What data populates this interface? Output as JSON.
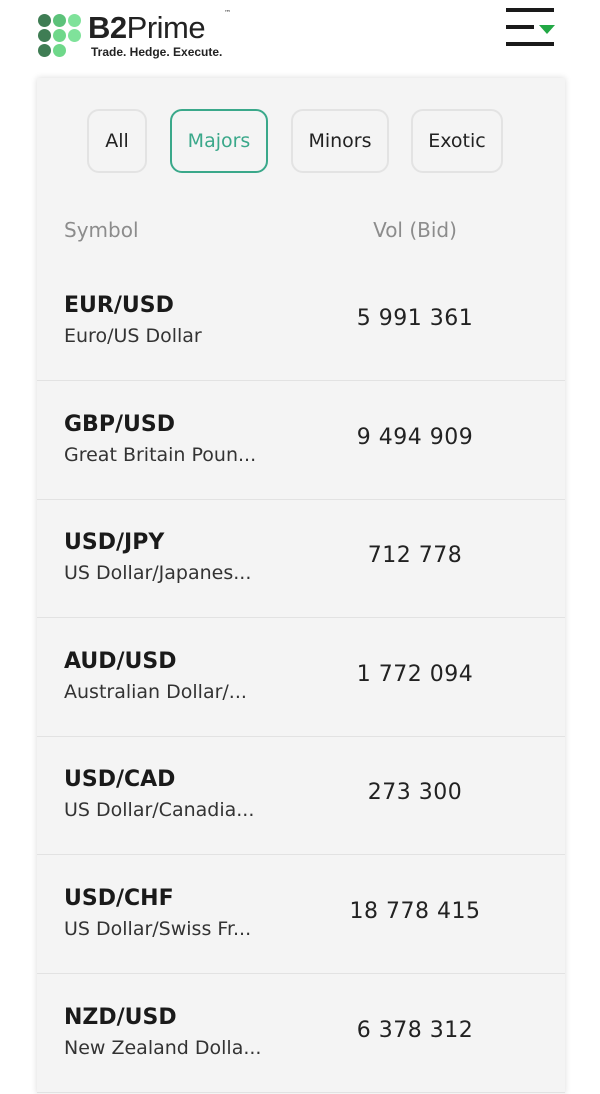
{
  "header": {
    "brand_bold": "B2",
    "brand_rest": "Prime",
    "trademark": "™",
    "tagline": "Trade. Hedge. Execute.",
    "colors": {
      "dark_green": "#3f7d54",
      "mid_green": "#5cc27a",
      "light_green": "#7fe29a",
      "menu_accent": "#22a845"
    }
  },
  "tabs": [
    {
      "label": "All",
      "active": false
    },
    {
      "label": "Majors",
      "active": true
    },
    {
      "label": "Minors",
      "active": false
    },
    {
      "label": "Exotic",
      "active": false
    }
  ],
  "columns": {
    "symbol": "Symbol",
    "vol": "Vol (Bid)"
  },
  "rows": [
    {
      "symbol": "EUR/USD",
      "name": "Euro/US Dollar",
      "vol": "5 991 361"
    },
    {
      "symbol": "GBP/USD",
      "name": "Great Britain Poun...",
      "vol": "9 494 909"
    },
    {
      "symbol": "USD/JPY",
      "name": "US Dollar/Japanes...",
      "vol": "712 778"
    },
    {
      "symbol": "AUD/USD",
      "name": "Australian Dollar/...",
      "vol": "1 772 094"
    },
    {
      "symbol": "USD/CAD",
      "name": "US Dollar/Canadia...",
      "vol": "273 300"
    },
    {
      "symbol": "USD/CHF",
      "name": "US Dollar/Swiss Fr...",
      "vol": "18 778 415"
    },
    {
      "symbol": "NZD/USD",
      "name": "New Zealand Dolla...",
      "vol": "6 378 312"
    }
  ]
}
